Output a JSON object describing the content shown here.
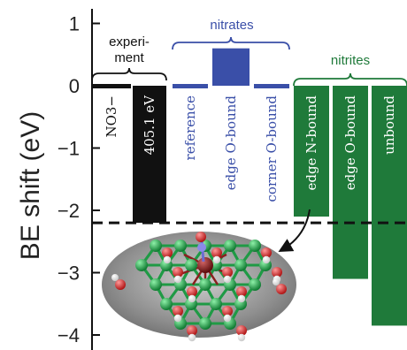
{
  "chart_data": {
    "type": "bar",
    "ylabel": "BE shift (eV)",
    "ylim": [
      -4,
      1
    ],
    "yticks": [
      "1",
      "0",
      "-1",
      "-2",
      "-3",
      "-4"
    ],
    "grid": false,
    "reference_line": -2.2,
    "groups": [
      {
        "name": "experi-\nment",
        "color": "#111111"
      },
      {
        "name": "nitrates",
        "color": "#3a4fa8"
      },
      {
        "name": "nitrites",
        "color": "#1f7a3a"
      }
    ],
    "bars": [
      {
        "label": "NO3−",
        "value": 0.07,
        "group": "experi-\nment"
      },
      {
        "label": "405.1 eV",
        "value": -2.2,
        "group": "experi-\nment"
      },
      {
        "label": "reference",
        "value": 0.07,
        "group": "nitrates"
      },
      {
        "label": "edge O-bound",
        "value": 0.6,
        "group": "nitrates"
      },
      {
        "label": "corner O-bound",
        "value": 0.07,
        "group": "nitrates"
      },
      {
        "label": "edge N-bound",
        "value": -2.1,
        "group": "nitrites"
      },
      {
        "label": "edge O-bound",
        "value": -3.1,
        "group": "nitrites"
      },
      {
        "label": "unbound",
        "value": -3.85,
        "group": "nitrites"
      }
    ]
  },
  "colors": {
    "experiment": "#111111",
    "nitrates": "#3a4fa8",
    "nitrites": "#1f7a3a",
    "molecule_bg": "#9a9a9a",
    "atom_green": "#23a04b",
    "atom_red": "#d12d2d",
    "atom_white": "#f4f4f4",
    "atom_darkred": "#8a1f1f"
  },
  "inset": {
    "icon": "molecular-structure-render"
  }
}
